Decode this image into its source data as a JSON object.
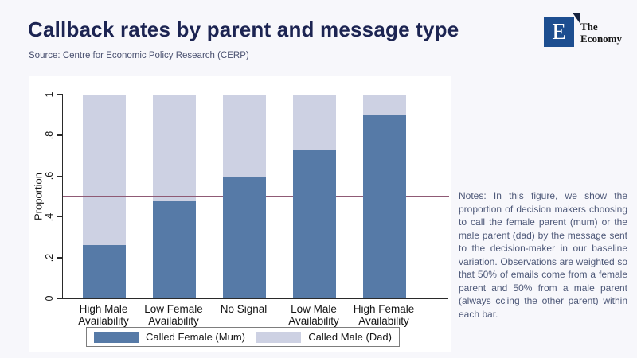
{
  "page": {
    "title": "Callback rates by parent and message type",
    "source": "Source: Centre for Economic Policy Research (CERP)"
  },
  "logo": {
    "letter": "E",
    "name_line1": "The",
    "name_line2": "Economy"
  },
  "notes": "Notes: In this figure, we show the proportion of decision makers choosing to call the female parent (mum) or the male parent (dad) by the message sent to the decision-maker in our baseline variation. Observations are weighted so that 50% of emails come from a female parent and 50% from a male parent (always cc'ing the other parent) within each bar.",
  "colors": {
    "mum_blue": "#567aa7",
    "dad_lavender": "#cdd1e3",
    "reference_line": "#8f5a75",
    "title_navy": "#1c2452",
    "page_background": "#f7f7fb",
    "logo_blue": "#1d4e90"
  },
  "chart_data": {
    "type": "bar",
    "stacked": true,
    "ylabel": "Proportion",
    "xlabel": "",
    "ylim": [
      0,
      1
    ],
    "yticks": [
      "0",
      ".2",
      ".4",
      ".6",
      ".8",
      "1"
    ],
    "ytick_values": [
      0,
      0.2,
      0.4,
      0.6,
      0.8,
      1
    ],
    "grid": false,
    "reference_line_y": 0.5,
    "legend_position": "bottom",
    "categories": [
      "High Male Availability",
      "Low Female Availability",
      "No Signal",
      "Low Male Availability",
      "High Female Availability"
    ],
    "category_lines": [
      [
        "High Male",
        "Availability"
      ],
      [
        "Low Female",
        "Availability"
      ],
      [
        "No Signal"
      ],
      [
        "Low Male",
        "Availability"
      ],
      [
        "High Female",
        "Availability"
      ]
    ],
    "series": [
      {
        "name": "Called Female (Mum)",
        "color": "#567aa7",
        "values": [
          0.26,
          0.475,
          0.595,
          0.725,
          0.9
        ]
      },
      {
        "name": "Called Male (Dad)",
        "color": "#cdd1e3",
        "values": [
          0.74,
          0.525,
          0.405,
          0.275,
          0.1
        ]
      }
    ]
  }
}
